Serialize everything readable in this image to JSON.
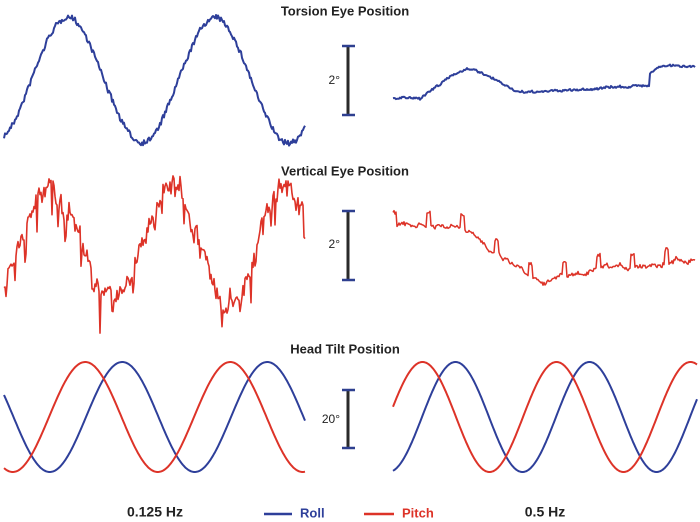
{
  "panels": [
    {
      "title": "Torsion Eye Position",
      "scale": "2°"
    },
    {
      "title": "Vertical Eye Position",
      "scale": "2°"
    },
    {
      "title": "Head Tilt Position",
      "scale": "20°"
    }
  ],
  "footer": {
    "left": "0.125 Hz",
    "right": "0.5 Hz"
  },
  "legend": [
    {
      "name": "Roll"
    },
    {
      "name": "Pitch"
    }
  ]
}
